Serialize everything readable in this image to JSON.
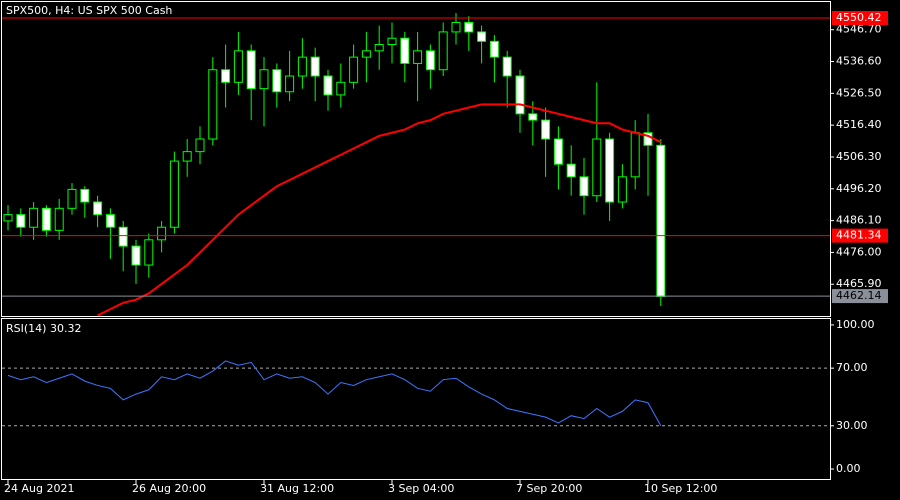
{
  "chart_data": [
    {
      "type": "candlestick",
      "title": "SPX500, H4:  US SPX 500 Cash",
      "categories": [
        "24 Aug 2021",
        null,
        null,
        null,
        null,
        null,
        null,
        null,
        null,
        null,
        "26 Aug 20:00",
        null,
        null,
        null,
        null,
        null,
        null,
        null,
        null,
        null,
        "31 Aug 12:00",
        null,
        null,
        null,
        null,
        null,
        null,
        null,
        null,
        null,
        "3 Sep 04:00",
        null,
        null,
        null,
        null,
        null,
        null,
        null,
        null,
        null,
        "7 Sep 20:00",
        null,
        null,
        null,
        null,
        null,
        null,
        null,
        null,
        null,
        "10 Sep 12:00",
        null
      ],
      "open": [
        4486,
        4488,
        4484,
        4490,
        4483,
        4490,
        4496,
        4492,
        4488,
        4484,
        4478,
        4472,
        4480,
        4484,
        4505,
        4508,
        4512,
        4534,
        4530,
        4540,
        4528,
        4534,
        4527,
        4532,
        4538,
        4532,
        4526,
        4530,
        4538,
        4540,
        4542,
        4544,
        4536,
        4540,
        4534,
        4546,
        4549,
        4546,
        4543,
        4538,
        4532,
        4520,
        4518,
        4512,
        4504,
        4500,
        4494,
        4512,
        4492,
        4500,
        4514,
        4510
      ],
      "high": [
        4491,
        4490,
        4492,
        4491,
        4493,
        4498,
        4497,
        4494,
        4490,
        4486,
        4480,
        4482,
        4486,
        4508,
        4512,
        4516,
        4538,
        4542,
        4546,
        4542,
        4538,
        4536,
        4540,
        4544,
        4541,
        4534,
        4536,
        4542,
        4546,
        4548,
        4549,
        4546,
        4546,
        4542,
        4549,
        4552,
        4551,
        4548,
        4545,
        4540,
        4534,
        4524,
        4522,
        4516,
        4510,
        4506,
        4530,
        4514,
        4504,
        4518,
        4520,
        4512
      ],
      "low": [
        4483,
        4481,
        4480,
        4481,
        4480,
        4488,
        4487,
        4484,
        4474,
        4470,
        4466,
        4468,
        4476,
        4482,
        4500,
        4504,
        4510,
        4522,
        4526,
        4518,
        4516,
        4522,
        4524,
        4528,
        4524,
        4521,
        4522,
        4528,
        4530,
        4534,
        4536,
        4530,
        4524,
        4528,
        4532,
        4542,
        4540,
        4536,
        4530,
        4522,
        4514,
        4510,
        4500,
        4496,
        4494,
        4488,
        4492,
        4486,
        4490,
        4496,
        4494,
        4459
      ],
      "close": [
        4488,
        4484,
        4490,
        4483,
        4490,
        4496,
        4492,
        4488,
        4484,
        4478,
        4472,
        4480,
        4484,
        4505,
        4508,
        4512,
        4534,
        4530,
        4540,
        4528,
        4534,
        4527,
        4532,
        4538,
        4532,
        4526,
        4530,
        4538,
        4540,
        4542,
        4544,
        4536,
        4540,
        4534,
        4546,
        4549,
        4546,
        4543,
        4538,
        4532,
        4520,
        4518,
        4512,
        4504,
        4500,
        4494,
        4512,
        4492,
        4500,
        4514,
        4510,
        4462
      ],
      "candle_color": "#00ff00",
      "up_fill": "#000000",
      "down_fill": "#ffffff",
      "ma": {
        "color": "#ff0000",
        "values": [
          null,
          null,
          null,
          null,
          null,
          null,
          null,
          4456,
          4458,
          4460,
          4461,
          4463,
          4466,
          4469,
          4472,
          4476,
          4480,
          4484,
          4488,
          4491,
          4494,
          4497,
          4499,
          4501,
          4503,
          4505,
          4507,
          4509,
          4511,
          4513,
          4514,
          4515,
          4517,
          4518,
          4520,
          4521,
          4522,
          4523,
          4523,
          4523,
          4523,
          4522,
          4521,
          4520,
          4519,
          4518,
          4517,
          4517,
          4515,
          4514,
          4513,
          4511
        ]
      },
      "ylim": [
        4455.5,
        4555.5
      ],
      "yticks": [
        {
          "value": 4546.7,
          "label": "4546.70"
        },
        {
          "value": 4536.6,
          "label": "4536.60"
        },
        {
          "value": 4526.5,
          "label": "4526.50"
        },
        {
          "value": 4516.4,
          "label": "4516.40"
        },
        {
          "value": 4506.3,
          "label": "4506.30"
        },
        {
          "value": 4496.2,
          "label": "4496.20"
        },
        {
          "value": 4486.1,
          "label": "4486.10"
        },
        {
          "value": 4476,
          "label": "4476.00"
        },
        {
          "value": 4465.9,
          "label": "4465.90"
        }
      ],
      "price_lines": [
        {
          "value": 4550.42,
          "color": "#ff0000"
        },
        {
          "value": 4481.34,
          "color": "#ff0000"
        },
        {
          "value": 4462.14,
          "color": "#8a8f99"
        }
      ]
    },
    {
      "type": "line",
      "title": "RSI(14) 30.32",
      "series": [
        {
          "color": "#3a78ff",
          "values": [
            65,
            62,
            64,
            60,
            63,
            66,
            61,
            58,
            56,
            48,
            52,
            55,
            64,
            62,
            66,
            63,
            68,
            75,
            72,
            74,
            62,
            66,
            63,
            64,
            60,
            52,
            60,
            58,
            62,
            64,
            66,
            62,
            56,
            54,
            62,
            63,
            57,
            52,
            48,
            42,
            40,
            38,
            36,
            32,
            37,
            35,
            42,
            36,
            40,
            48,
            46,
            30
          ]
        }
      ],
      "ylim": [
        -7.6,
        104.1
      ],
      "yticks": [
        {
          "value": 100,
          "label": "100.00"
        },
        {
          "value": 70,
          "label": "70.00"
        },
        {
          "value": 30,
          "label": "30.00"
        },
        {
          "value": 0,
          "label": "0.00"
        }
      ],
      "levels": [
        70,
        30
      ]
    }
  ]
}
